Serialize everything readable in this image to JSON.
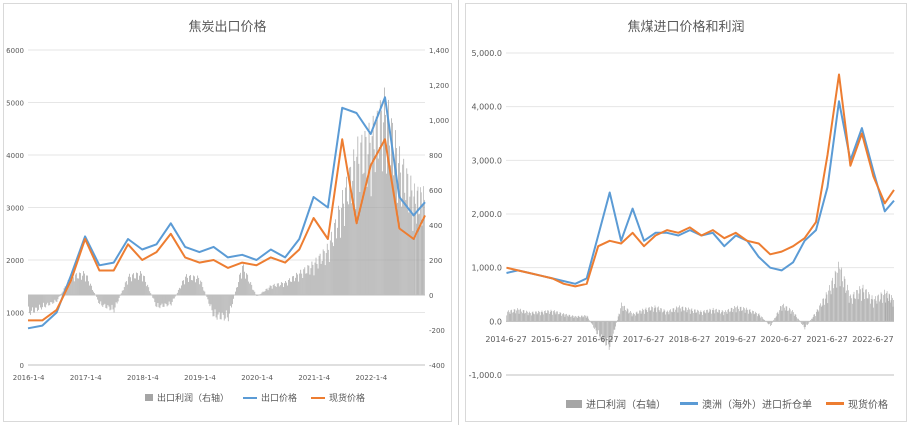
{
  "colors": {
    "bar": "#a5a5a5",
    "blue": "#5b9bd5",
    "orange": "#ed7d31",
    "grid": "#e6e6e6",
    "axis": "#bfbfbf"
  },
  "chart_data": [
    {
      "type": "line",
      "title": "焦炭出口价格",
      "x_tick_labels": [
        "2016-1-4",
        "2017-1-4",
        "2018-1-4",
        "2019-1-4",
        "2020-1-4",
        "2021-1-4",
        "2022-1-4"
      ],
      "x_range": [
        2016.0,
        2022.95
      ],
      "y_left_ticks": [
        "0",
        "1000",
        "2000",
        "3000",
        "4000",
        "5000",
        "6000"
      ],
      "y_left_range": [
        0,
        6000
      ],
      "y_right_ticks": [
        "-400",
        "-200",
        "0",
        "200",
        "400",
        "600",
        "800",
        "1,000",
        "1,200",
        "1,400"
      ],
      "y_right_range": [
        -400,
        1400
      ],
      "legend": [
        "出口利润（右轴）",
        "出口价格",
        "现货价格"
      ],
      "series": [
        {
          "name": "出口利润（右轴）",
          "axis": "right",
          "kind": "bar",
          "x": [
            2016.0,
            2016.25,
            2016.5,
            2016.75,
            2017.0,
            2017.25,
            2017.5,
            2017.75,
            2018.0,
            2018.25,
            2018.5,
            2018.75,
            2019.0,
            2019.25,
            2019.5,
            2019.75,
            2020.0,
            2020.25,
            2020.5,
            2020.75,
            2021.0,
            2021.25,
            2021.5,
            2021.75,
            2022.0,
            2022.25,
            2022.5,
            2022.75,
            2022.95
          ],
          "values": [
            -120,
            -80,
            -40,
            120,
            140,
            -60,
            -100,
            120,
            140,
            -80,
            -60,
            120,
            110,
            -140,
            -150,
            190,
            -10,
            60,
            80,
            140,
            200,
            300,
            600,
            900,
            1000,
            1200,
            850,
            640,
            620
          ]
        },
        {
          "name": "出口价格",
          "axis": "left",
          "kind": "line",
          "x": [
            2016.0,
            2016.25,
            2016.5,
            2016.75,
            2017.0,
            2017.25,
            2017.5,
            2017.75,
            2018.0,
            2018.25,
            2018.5,
            2018.75,
            2019.0,
            2019.25,
            2019.5,
            2019.75,
            2020.0,
            2020.25,
            2020.5,
            2020.75,
            2021.0,
            2021.25,
            2021.5,
            2021.75,
            2022.0,
            2022.25,
            2022.5,
            2022.75,
            2022.95
          ],
          "values": [
            700,
            750,
            1000,
            1700,
            2450,
            1900,
            1950,
            2400,
            2200,
            2300,
            2700,
            2250,
            2150,
            2250,
            2050,
            2100,
            2000,
            2200,
            2050,
            2400,
            3200,
            3000,
            4900,
            4800,
            4400,
            5100,
            3200,
            2850,
            3100
          ]
        },
        {
          "name": "现货价格",
          "axis": "left",
          "kind": "line",
          "x": [
            2016.0,
            2016.25,
            2016.5,
            2016.75,
            2017.0,
            2017.25,
            2017.5,
            2017.75,
            2018.0,
            2018.25,
            2018.5,
            2018.75,
            2019.0,
            2019.25,
            2019.5,
            2019.75,
            2020.0,
            2020.25,
            2020.5,
            2020.75,
            2021.0,
            2021.25,
            2021.5,
            2021.75,
            2022.0,
            2022.25,
            2022.5,
            2022.75,
            2022.95
          ],
          "values": [
            850,
            850,
            1050,
            1600,
            2400,
            1800,
            1800,
            2300,
            2000,
            2150,
            2500,
            2050,
            1950,
            2000,
            1850,
            1950,
            1900,
            2050,
            1950,
            2200,
            2800,
            2400,
            4300,
            2700,
            3800,
            4300,
            2600,
            2400,
            2850
          ]
        }
      ]
    },
    {
      "type": "line",
      "title": "焦煤进口价格和利润",
      "x_tick_labels": [
        "2014-6-27",
        "2015-6-27",
        "2016-6-27",
        "2017-6-27",
        "2018-6-27",
        "2019-6-27",
        "2020-6-27",
        "2021-6-27",
        "2022-6-27"
      ],
      "x_range": [
        2014.49,
        2022.95
      ],
      "y_ticks": [
        "-1,000.0",
        "0.0",
        "1,000.0",
        "2,000.0",
        "3,000.0",
        "4,000.0",
        "5,000.0"
      ],
      "y_range": [
        -1000,
        5000
      ],
      "legend": [
        "进口利润（右轴）",
        "澳洲（海外）进口折仓单",
        "现货价格"
      ],
      "series": [
        {
          "name": "进口利润（右轴）",
          "axis": "left",
          "kind": "bar",
          "x": [
            2014.5,
            2014.75,
            2015.0,
            2015.25,
            2015.5,
            2015.75,
            2016.0,
            2016.25,
            2016.5,
            2016.75,
            2017.0,
            2017.25,
            2017.5,
            2017.75,
            2018.0,
            2018.25,
            2018.5,
            2018.75,
            2019.0,
            2019.25,
            2019.5,
            2019.75,
            2020.0,
            2020.25,
            2020.5,
            2020.75,
            2021.0,
            2021.25,
            2021.5,
            2021.75,
            2022.0,
            2022.25,
            2022.5,
            2022.75,
            2022.95
          ],
          "values": [
            200,
            250,
            180,
            200,
            220,
            150,
            100,
            120,
            -300,
            -550,
            350,
            150,
            250,
            300,
            200,
            300,
            250,
            200,
            250,
            200,
            300,
            250,
            150,
            -100,
            350,
            200,
            -150,
            200,
            600,
            1150,
            500,
            700,
            450,
            600,
            450
          ]
        },
        {
          "name": "澳洲（海外）进口折仓单",
          "axis": "left",
          "kind": "line",
          "x": [
            2014.5,
            2014.75,
            2015.0,
            2015.25,
            2015.5,
            2015.75,
            2016.0,
            2016.25,
            2016.5,
            2016.75,
            2017.0,
            2017.25,
            2017.5,
            2017.75,
            2018.0,
            2018.25,
            2018.5,
            2018.75,
            2019.0,
            2019.25,
            2019.5,
            2019.75,
            2020.0,
            2020.25,
            2020.5,
            2020.75,
            2021.0,
            2021.25,
            2021.5,
            2021.75,
            2022.0,
            2022.25,
            2022.5,
            2022.75,
            2022.95
          ],
          "values": [
            900,
            950,
            900,
            850,
            800,
            750,
            700,
            800,
            1600,
            2400,
            1500,
            2100,
            1500,
            1650,
            1650,
            1600,
            1700,
            1600,
            1650,
            1400,
            1600,
            1500,
            1200,
            1000,
            950,
            1100,
            1500,
            1700,
            2500,
            4100,
            3000,
            3600,
            2800,
            2050,
            2250
          ]
        },
        {
          "name": "现货价格",
          "axis": "left",
          "kind": "line",
          "x": [
            2014.5,
            2014.75,
            2015.0,
            2015.25,
            2015.5,
            2015.75,
            2016.0,
            2016.25,
            2016.5,
            2016.75,
            2017.0,
            2017.25,
            2017.5,
            2017.75,
            2018.0,
            2018.25,
            2018.5,
            2018.75,
            2019.0,
            2019.25,
            2019.5,
            2019.75,
            2020.0,
            2020.25,
            2020.5,
            2020.75,
            2021.0,
            2021.25,
            2021.5,
            2021.75,
            2022.0,
            2022.25,
            2022.5,
            2022.75,
            2022.95
          ],
          "values": [
            1000,
            950,
            900,
            850,
            800,
            700,
            650,
            700,
            1400,
            1500,
            1450,
            1650,
            1400,
            1600,
            1700,
            1650,
            1750,
            1600,
            1700,
            1550,
            1650,
            1500,
            1450,
            1250,
            1300,
            1400,
            1550,
            1850,
            3100,
            4600,
            2900,
            3500,
            2700,
            2200,
            2450
          ]
        }
      ]
    }
  ]
}
